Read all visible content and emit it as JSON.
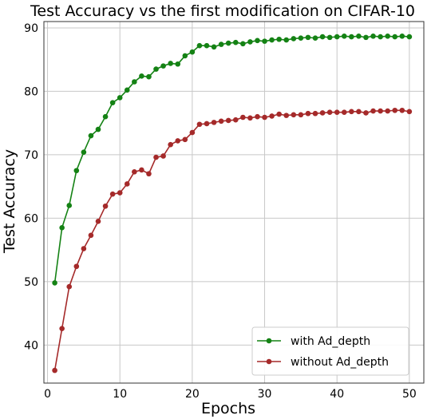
{
  "chart_data": {
    "type": "line",
    "title": "Test Accuracy vs the first modification on CIFAR-10",
    "xlabel": "Epochs",
    "ylabel": "Test Accuracy",
    "xlim": [
      -0.5,
      52
    ],
    "ylim": [
      34,
      91
    ],
    "xticks": [
      0,
      10,
      20,
      30,
      40,
      50
    ],
    "yticks": [
      40,
      50,
      60,
      70,
      80,
      90
    ],
    "grid": true,
    "legend_position": "lower-right",
    "x": [
      1,
      2,
      3,
      4,
      5,
      6,
      7,
      8,
      9,
      10,
      11,
      12,
      13,
      14,
      15,
      16,
      17,
      18,
      19,
      20,
      21,
      22,
      23,
      24,
      25,
      26,
      27,
      28,
      29,
      30,
      31,
      32,
      33,
      34,
      35,
      36,
      37,
      38,
      39,
      40,
      41,
      42,
      43,
      44,
      45,
      46,
      47,
      48,
      49,
      50
    ],
    "series": [
      {
        "name": "with Ad_depth",
        "color": "#148214",
        "values": [
          49.8,
          58.5,
          62.0,
          67.5,
          70.4,
          73.0,
          74.0,
          76.0,
          78.2,
          79.0,
          80.2,
          81.5,
          82.4,
          82.3,
          83.5,
          84.0,
          84.4,
          84.3,
          85.6,
          86.2,
          87.2,
          87.2,
          87.0,
          87.4,
          87.6,
          87.7,
          87.5,
          87.8,
          88.0,
          87.9,
          88.1,
          88.2,
          88.1,
          88.3,
          88.4,
          88.5,
          88.4,
          88.6,
          88.5,
          88.6,
          88.7,
          88.6,
          88.7,
          88.5,
          88.7,
          88.6,
          88.7,
          88.6,
          88.7,
          88.6
        ]
      },
      {
        "name": "without Ad_depth",
        "color": "#a52a2a",
        "values": [
          36.0,
          42.6,
          49.2,
          52.4,
          55.2,
          57.3,
          59.5,
          61.9,
          63.8,
          64.0,
          65.4,
          67.3,
          67.6,
          67.0,
          69.6,
          69.8,
          71.6,
          72.2,
          72.4,
          73.5,
          74.8,
          74.9,
          75.1,
          75.3,
          75.4,
          75.5,
          75.9,
          75.8,
          76.0,
          75.9,
          76.1,
          76.4,
          76.2,
          76.3,
          76.3,
          76.5,
          76.5,
          76.6,
          76.7,
          76.7,
          76.7,
          76.8,
          76.8,
          76.6,
          76.9,
          76.9,
          76.9,
          77.0,
          77.0,
          76.8
        ]
      }
    ]
  }
}
